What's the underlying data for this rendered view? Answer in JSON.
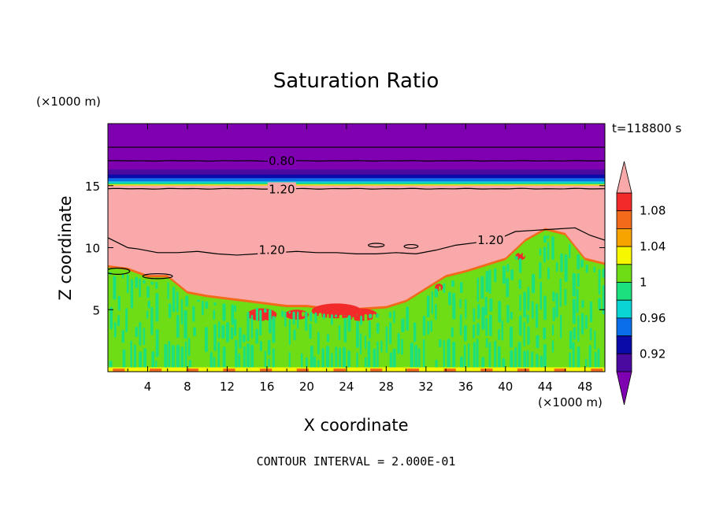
{
  "chart_data": {
    "type": "heatmap",
    "title": "Saturation Ratio",
    "xlabel": "X coordinate",
    "ylabel": "Z coordinate",
    "x_unit": "(×1000 m)",
    "y_unit": "(×1000 m)",
    "time_label": "t=118800 s",
    "footer": "CONTOUR INTERVAL = 2.000E-01",
    "xlim": [
      0,
      50
    ],
    "ylim": [
      0,
      20
    ],
    "x_ticks": [
      4,
      8,
      12,
      16,
      20,
      24,
      28,
      32,
      36,
      40,
      44,
      48
    ],
    "y_ticks": [
      5,
      10,
      15
    ],
    "colorbar": {
      "tick_labels": [
        "1.08",
        "1.04",
        "1",
        "0.96",
        "0.92"
      ],
      "tick_values": [
        1.08,
        1.04,
        1.0,
        0.96,
        0.92
      ],
      "levels": [
        {
          "min": 1.1,
          "max": null,
          "color": "#f9a9a9"
        },
        {
          "min": 1.08,
          "max": 1.1,
          "color": "#f22a2a"
        },
        {
          "min": 1.06,
          "max": 1.08,
          "color": "#f36a1a"
        },
        {
          "min": 1.04,
          "max": 1.06,
          "color": "#f8a400"
        },
        {
          "min": 1.02,
          "max": 1.04,
          "color": "#f7f700"
        },
        {
          "min": 1.0,
          "max": 1.02,
          "color": "#6fdd16"
        },
        {
          "min": 0.98,
          "max": 1.0,
          "color": "#1ce07d"
        },
        {
          "min": 0.96,
          "max": 0.98,
          "color": "#0ad4d4"
        },
        {
          "min": 0.94,
          "max": 0.96,
          "color": "#0a6eeb"
        },
        {
          "min": 0.92,
          "max": 0.94,
          "color": "#0a0aa8"
        },
        {
          "min": 0.9,
          "max": 0.92,
          "color": "#4a0aa0"
        },
        {
          "min": null,
          "max": 0.9,
          "color": "#7f00b0"
        }
      ]
    },
    "contour_labels": [
      {
        "text": "0.80",
        "x": 17.5,
        "z": 17.0
      },
      {
        "text": "1.20",
        "x": 17.5,
        "z": 14.7
      },
      {
        "text": "1.20",
        "x": 16.5,
        "z": 9.8
      },
      {
        "text": "1.20",
        "x": 38.5,
        "z": 10.6
      }
    ]
  }
}
